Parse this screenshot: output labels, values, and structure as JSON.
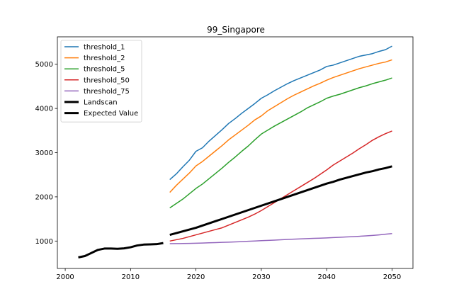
{
  "chart_data": {
    "type": "line",
    "title": "99_Singapore",
    "xlabel": "",
    "ylabel": "",
    "xlim": [
      1998.8,
      2053.2
    ],
    "ylim": [
      380,
      5620
    ],
    "xticks": [
      2000,
      2010,
      2020,
      2030,
      2040,
      2050
    ],
    "yticks": [
      1000,
      2000,
      3000,
      4000,
      5000
    ],
    "grid": false,
    "legend_position": "top-left",
    "series": [
      {
        "name": "threshold_1",
        "color": "#1f77b4",
        "width": 1.5,
        "x": [
          2016,
          2017,
          2018,
          2019,
          2020,
          2021,
          2022,
          2023,
          2024,
          2025,
          2026,
          2027,
          2028,
          2029,
          2030,
          2031,
          2032,
          2033,
          2034,
          2035,
          2036,
          2037,
          2038,
          2039,
          2040,
          2041,
          2042,
          2043,
          2044,
          2045,
          2046,
          2047,
          2048,
          2049,
          2050
        ],
        "y": [
          2390,
          2520,
          2680,
          2830,
          3030,
          3110,
          3260,
          3390,
          3520,
          3660,
          3770,
          3890,
          4000,
          4110,
          4230,
          4310,
          4400,
          4480,
          4560,
          4630,
          4690,
          4750,
          4810,
          4870,
          4950,
          4980,
          5030,
          5080,
          5130,
          5180,
          5210,
          5240,
          5290,
          5330,
          5410
        ]
      },
      {
        "name": "threshold_2",
        "color": "#ff7f0e",
        "width": 1.5,
        "x": [
          2016,
          2017,
          2018,
          2019,
          2020,
          2021,
          2022,
          2023,
          2024,
          2025,
          2026,
          2027,
          2028,
          2029,
          2030,
          2031,
          2032,
          2033,
          2034,
          2035,
          2036,
          2037,
          2038,
          2039,
          2040,
          2041,
          2042,
          2043,
          2044,
          2045,
          2046,
          2047,
          2048,
          2049,
          2050
        ],
        "y": [
          2100,
          2260,
          2400,
          2540,
          2700,
          2800,
          2920,
          3040,
          3160,
          3290,
          3400,
          3510,
          3620,
          3740,
          3830,
          3950,
          4040,
          4130,
          4220,
          4300,
          4370,
          4440,
          4510,
          4570,
          4640,
          4700,
          4750,
          4800,
          4850,
          4900,
          4940,
          4980,
          5020,
          5050,
          5100
        ]
      },
      {
        "name": "threshold_5",
        "color": "#2ca02c",
        "width": 1.5,
        "x": [
          2016,
          2017,
          2018,
          2019,
          2020,
          2021,
          2022,
          2023,
          2024,
          2025,
          2026,
          2027,
          2028,
          2029,
          2030,
          2031,
          2032,
          2033,
          2034,
          2035,
          2036,
          2037,
          2038,
          2039,
          2040,
          2041,
          2042,
          2043,
          2044,
          2045,
          2046,
          2047,
          2048,
          2049,
          2050
        ],
        "y": [
          1750,
          1850,
          1950,
          2070,
          2190,
          2290,
          2410,
          2530,
          2650,
          2780,
          2900,
          3030,
          3150,
          3290,
          3420,
          3510,
          3600,
          3680,
          3760,
          3840,
          3920,
          4010,
          4080,
          4150,
          4230,
          4280,
          4320,
          4370,
          4420,
          4470,
          4510,
          4560,
          4600,
          4640,
          4690
        ]
      },
      {
        "name": "threshold_50",
        "color": "#d62728",
        "width": 1.5,
        "x": [
          2016,
          2017,
          2018,
          2019,
          2020,
          2021,
          2022,
          2023,
          2024,
          2025,
          2026,
          2027,
          2028,
          2029,
          2030,
          2031,
          2032,
          2033,
          2034,
          2035,
          2036,
          2037,
          2038,
          2039,
          2040,
          2041,
          2042,
          2043,
          2044,
          2045,
          2046,
          2047,
          2048,
          2049,
          2050
        ],
        "y": [
          1000,
          1030,
          1060,
          1100,
          1140,
          1180,
          1220,
          1260,
          1300,
          1360,
          1420,
          1480,
          1540,
          1610,
          1690,
          1780,
          1870,
          1960,
          2050,
          2140,
          2230,
          2320,
          2410,
          2510,
          2610,
          2720,
          2810,
          2900,
          2990,
          3090,
          3180,
          3280,
          3360,
          3430,
          3490
        ]
      },
      {
        "name": "threshold_75",
        "color": "#9467bd",
        "width": 1.5,
        "x": [
          2016,
          2017,
          2018,
          2019,
          2020,
          2021,
          2022,
          2023,
          2024,
          2025,
          2026,
          2027,
          2028,
          2029,
          2030,
          2031,
          2032,
          2033,
          2034,
          2035,
          2036,
          2037,
          2038,
          2039,
          2040,
          2041,
          2042,
          2043,
          2044,
          2045,
          2046,
          2047,
          2048,
          2049,
          2050
        ],
        "y": [
          940,
          942,
          944,
          946,
          950,
          955,
          960,
          965,
          970,
          975,
          980,
          987,
          994,
          1001,
          1008,
          1015,
          1022,
          1029,
          1036,
          1043,
          1050,
          1055,
          1060,
          1066,
          1072,
          1079,
          1086,
          1093,
          1100,
          1108,
          1117,
          1127,
          1140,
          1155,
          1170
        ]
      },
      {
        "name": "Landscan",
        "color": "#000000",
        "width": 3,
        "x": [
          2002,
          2003,
          2004,
          2005,
          2006,
          2007,
          2008,
          2009,
          2010,
          2011,
          2012,
          2013,
          2014,
          2015
        ],
        "y": [
          630,
          660,
          730,
          800,
          830,
          830,
          825,
          835,
          860,
          900,
          920,
          925,
          930,
          955
        ]
      },
      {
        "name": "Expected Value",
        "color": "#000000",
        "width": 3,
        "x": [
          2016,
          2017,
          2018,
          2019,
          2020,
          2021,
          2022,
          2023,
          2024,
          2025,
          2026,
          2027,
          2028,
          2029,
          2030,
          2031,
          2032,
          2033,
          2034,
          2035,
          2036,
          2037,
          2038,
          2039,
          2040,
          2041,
          2042,
          2043,
          2044,
          2045,
          2046,
          2047,
          2048,
          2049,
          2050
        ],
        "y": [
          1140,
          1180,
          1220,
          1260,
          1300,
          1350,
          1400,
          1450,
          1500,
          1550,
          1600,
          1650,
          1700,
          1750,
          1800,
          1850,
          1900,
          1950,
          2000,
          2050,
          2100,
          2150,
          2200,
          2250,
          2300,
          2340,
          2390,
          2430,
          2470,
          2510,
          2550,
          2580,
          2620,
          2650,
          2690
        ]
      }
    ]
  }
}
